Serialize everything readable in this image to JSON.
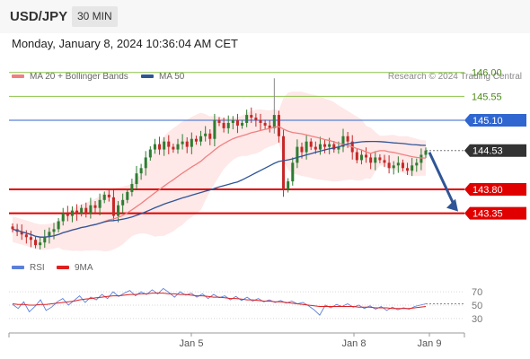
{
  "header": {
    "pair": "USD/JPY",
    "timeframe": "30 MIN"
  },
  "datetime": "Monday, January 8, 2024 10:36:04 AM CET",
  "legend": {
    "ma20": "MA 20 + Bollinger Bands",
    "ma20_color": "#f08080",
    "ma50": "MA 50",
    "ma50_color": "#2f5597"
  },
  "credit": "Research © 2024 Trading Central",
  "rsi_legend": {
    "rsi": "RSI",
    "rsi_color": "#5b7fd9",
    "ma9": "9MA",
    "ma9_color": "#e02020"
  },
  "colors": {
    "up": "#2e7d32",
    "down": "#c62828",
    "band": "#fde0e0",
    "resistance": "#8bc34a",
    "pivot": "#2f66d0",
    "support": "#e00000",
    "current": "#333333",
    "arrow": "#2f5597"
  },
  "chart_data": [
    {
      "type": "candlestick",
      "ylim": [
        142.6,
        146.35
      ],
      "x_ticks": [
        "Jan 5",
        "Jan 8",
        "Jan 9"
      ],
      "levels": [
        {
          "label": "146.00",
          "value": 146.0,
          "kind": "resistance"
        },
        {
          "label": "145.55",
          "value": 145.55,
          "kind": "resistance"
        },
        {
          "label": "145.10",
          "value": 145.1,
          "kind": "pivot"
        },
        {
          "label": "144.53",
          "value": 144.53,
          "kind": "current"
        },
        {
          "label": "143.80",
          "value": 143.8,
          "kind": "support"
        },
        {
          "label": "143.35",
          "value": 143.35,
          "kind": "support"
        }
      ],
      "close_approx": [
        143.05,
        143.0,
        142.95,
        142.9,
        142.85,
        142.75,
        142.8,
        142.9,
        143.0,
        143.05,
        143.2,
        143.35,
        143.3,
        143.4,
        143.35,
        143.45,
        143.35,
        143.5,
        143.45,
        143.6,
        143.7,
        143.65,
        143.3,
        143.5,
        143.6,
        143.75,
        143.9,
        144.1,
        144.2,
        144.4,
        144.55,
        144.65,
        144.55,
        144.7,
        144.6,
        144.55,
        144.65,
        144.7,
        144.6,
        144.75,
        144.7,
        144.8,
        144.85,
        144.75,
        145.1,
        145.05,
        144.95,
        145.05,
        145.1,
        145.0,
        145.05,
        145.2,
        145.15,
        145.1,
        145.05,
        145.0,
        144.95,
        145.2,
        144.8,
        143.8,
        143.95,
        144.3,
        144.6,
        144.5,
        144.7,
        144.6,
        144.55,
        144.65,
        144.6,
        144.65,
        144.55,
        144.6,
        144.8,
        144.7,
        144.5,
        144.35,
        144.45,
        144.4,
        144.3,
        144.4,
        144.35,
        144.3,
        144.2,
        144.25,
        144.3,
        144.2,
        144.15,
        144.25,
        144.3,
        144.45,
        144.53
      ],
      "forecast_target": 143.35
    },
    {
      "type": "line",
      "title": "RSI",
      "y_ticks": [
        70,
        50,
        30
      ],
      "series": [
        {
          "name": "RSI",
          "values": [
            51,
            45,
            55,
            40,
            48,
            58,
            42,
            47,
            55,
            60,
            50,
            57,
            64,
            54,
            62,
            58,
            66,
            60,
            70,
            63,
            68,
            72,
            64,
            70,
            66,
            73,
            67,
            75,
            69,
            62,
            70,
            65,
            68,
            62,
            67,
            60,
            66,
            61,
            64,
            58,
            63,
            57,
            62,
            56,
            60,
            55,
            58,
            54,
            57,
            53,
            56,
            52,
            54,
            49,
            43,
            35,
            50,
            46,
            51,
            48,
            52,
            47,
            50,
            45,
            49,
            44,
            48,
            42,
            47,
            43,
            46,
            44,
            48,
            50,
            52
          ]
        },
        {
          "name": "9MA",
          "values": [
            52,
            51,
            51,
            50,
            50,
            51,
            51,
            52,
            53,
            54,
            55,
            56,
            58,
            59,
            60,
            61,
            62,
            63,
            64,
            64,
            65,
            66,
            66,
            67,
            67,
            68,
            68,
            68,
            67,
            67,
            66,
            66,
            65,
            64,
            64,
            63,
            62,
            62,
            61,
            60,
            60,
            59,
            58,
            58,
            57,
            56,
            56,
            55,
            55,
            54,
            53,
            52,
            51,
            50,
            49,
            48,
            48,
            48,
            48,
            48,
            48,
            48,
            47,
            47,
            47,
            46,
            46,
            46,
            45,
            45,
            45,
            45,
            46,
            47,
            48
          ]
        }
      ]
    }
  ]
}
